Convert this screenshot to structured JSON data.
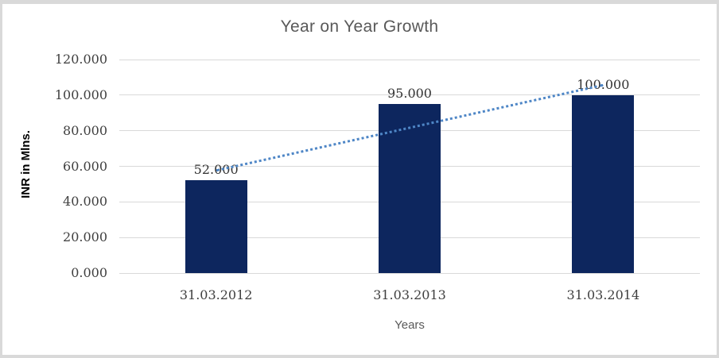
{
  "chart_data": {
    "type": "bar",
    "title": "Year on Year Growth",
    "categories": [
      "31.03.2012",
      "31.03.2013",
      "31.03.2014"
    ],
    "values": [
      52,
      95,
      100
    ],
    "data_labels": [
      "52.000",
      "95.000",
      "100.000"
    ],
    "xlabel": "Years",
    "ylabel": "INR in Mlns.",
    "ylim": [
      0,
      120
    ],
    "ytick_step": 20,
    "ytick_labels": [
      "0.000",
      "20.000",
      "40.000",
      "60.000",
      "80.000",
      "100.000",
      "120.000"
    ],
    "grid": true,
    "legend": "none",
    "trendline": {
      "type": "linear",
      "style": "dotted"
    },
    "colors": {
      "bar": "#0d265e",
      "trendline": "#4e86c6",
      "gridline": "#d9d9d9",
      "axis_text": "#404040",
      "title_text": "#595959",
      "frame_border": "#d9d9d9",
      "background": "#ffffff"
    }
  }
}
